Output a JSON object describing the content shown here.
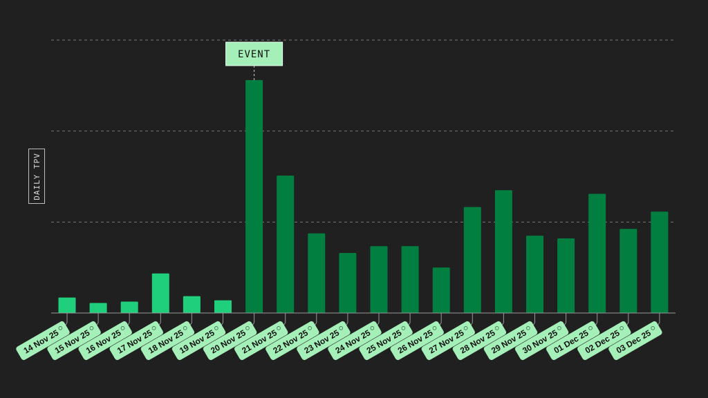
{
  "chart_data": {
    "type": "bar",
    "ylabel": "DAILY TPV",
    "categories": [
      "14 Nov 25",
      "15 Nov 25",
      "16 Nov 25",
      "17 Nov 25",
      "18 Nov 25",
      "19 Nov 25",
      "20 Nov 25",
      "21 Nov 25",
      "22 Nov 25",
      "23 Nov 25",
      "24 Nov 25",
      "25 Nov 25",
      "26 Nov 25",
      "27 Nov 25",
      "28 Nov 25",
      "29 Nov 25",
      "30 Nov 25",
      "01 Dec 25",
      "02 Dec 25",
      "03 Dec 25"
    ],
    "values": [
      17,
      11,
      12.5,
      43.5,
      18.5,
      14,
      256,
      151,
      87.5,
      66,
      73.5,
      73.5,
      50,
      116.5,
      135,
      85,
      82,
      131,
      92.5,
      111.5
    ],
    "ylim": [
      0,
      300
    ],
    "gridlines": [
      100,
      200,
      300
    ],
    "grid": true,
    "highlight_start_index": 6,
    "colors": {
      "background": "#202020",
      "bar_before": "#1fcf7c",
      "bar_after": "#007f40",
      "label_fill": "#a5f0b8",
      "label_text": "#111111",
      "grid": "#7a7a7a",
      "axis": "#9a9a9a"
    },
    "annotation": {
      "label": "EVENT",
      "category_index": 6
    }
  }
}
